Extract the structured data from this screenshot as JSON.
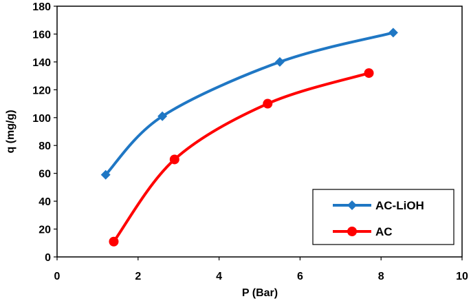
{
  "chart_data": {
    "type": "line",
    "title": "",
    "xlabel": "P (Bar)",
    "ylabel": "q (mg/g)",
    "xlim": [
      0,
      10
    ],
    "ylim": [
      0,
      180
    ],
    "xticks": [
      0,
      2,
      4,
      6,
      8,
      10
    ],
    "yticks": [
      0,
      20,
      40,
      60,
      80,
      100,
      120,
      140,
      160,
      180
    ],
    "grid": false,
    "legend_position": "bottom-right",
    "smooth": true,
    "series": [
      {
        "name": "AC-LiOH",
        "color": "#1f77c4",
        "marker": "diamond",
        "points": [
          [
            1.2,
            59
          ],
          [
            2.6,
            101
          ],
          [
            5.5,
            140
          ],
          [
            8.3,
            161
          ]
        ]
      },
      {
        "name": "AC",
        "color": "#ff0000",
        "marker": "circle",
        "points": [
          [
            1.4,
            11
          ],
          [
            2.9,
            70
          ],
          [
            5.2,
            110
          ],
          [
            7.7,
            132
          ]
        ]
      }
    ]
  }
}
